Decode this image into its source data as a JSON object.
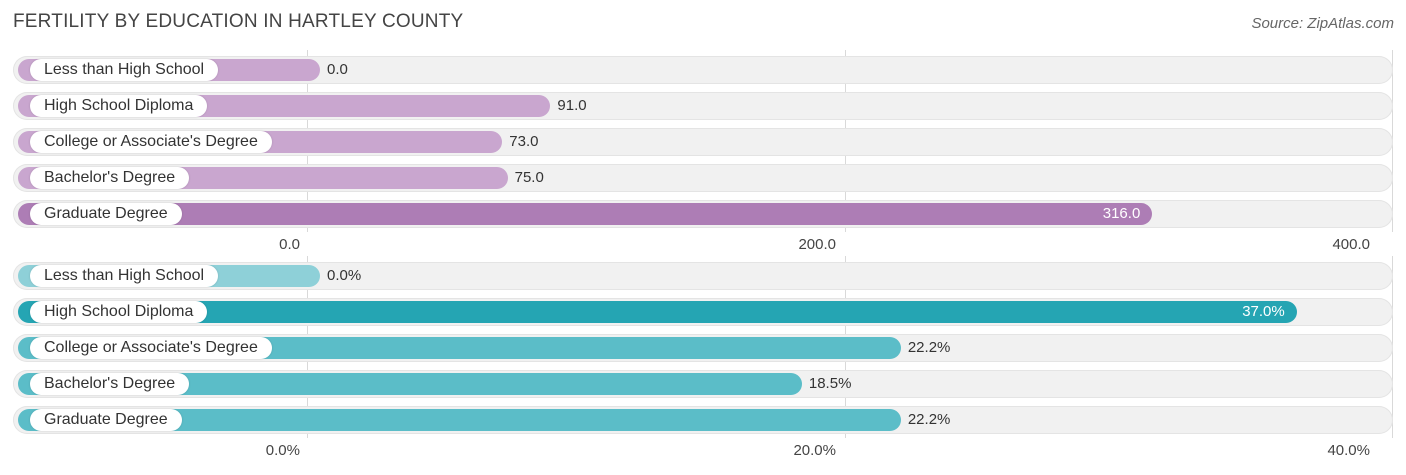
{
  "header": {
    "title": "FERTILITY BY EDUCATION IN HARTLEY COUNTY",
    "source": "Source: ZipAtlas.com"
  },
  "chart_data": [
    {
      "type": "bar",
      "orientation": "horizontal",
      "categories": [
        "Less than High School",
        "High School Diploma",
        "College or Associate's Degree",
        "Bachelor's Degree",
        "Graduate Degree"
      ],
      "values": [
        0.0,
        91.0,
        73.0,
        75.0,
        316.0
      ],
      "value_labels": [
        "0.0",
        "91.0",
        "73.0",
        "75.0",
        "316.0"
      ],
      "xlim": [
        0,
        400
      ],
      "ticks": [
        "0.0",
        "200.0",
        "400.0"
      ],
      "colors": {
        "base": "#c9a6cf",
        "highlight": "#ad7db5"
      },
      "grid": true
    },
    {
      "type": "bar",
      "orientation": "horizontal",
      "categories": [
        "Less than High School",
        "High School Diploma",
        "College or Associate's Degree",
        "Bachelor's Degree",
        "Graduate Degree"
      ],
      "values": [
        0.0,
        37.0,
        22.2,
        18.5,
        22.2
      ],
      "value_labels": [
        "0.0%",
        "37.0%",
        "22.2%",
        "18.5%",
        "22.2%"
      ],
      "xlim": [
        0,
        40
      ],
      "ticks": [
        "0.0%",
        "20.0%",
        "40.0%"
      ],
      "colors": {
        "base": "#5bbdc8",
        "highlight": "#25a5b3",
        "zero": "#8ed0d8"
      },
      "grid": true
    }
  ]
}
